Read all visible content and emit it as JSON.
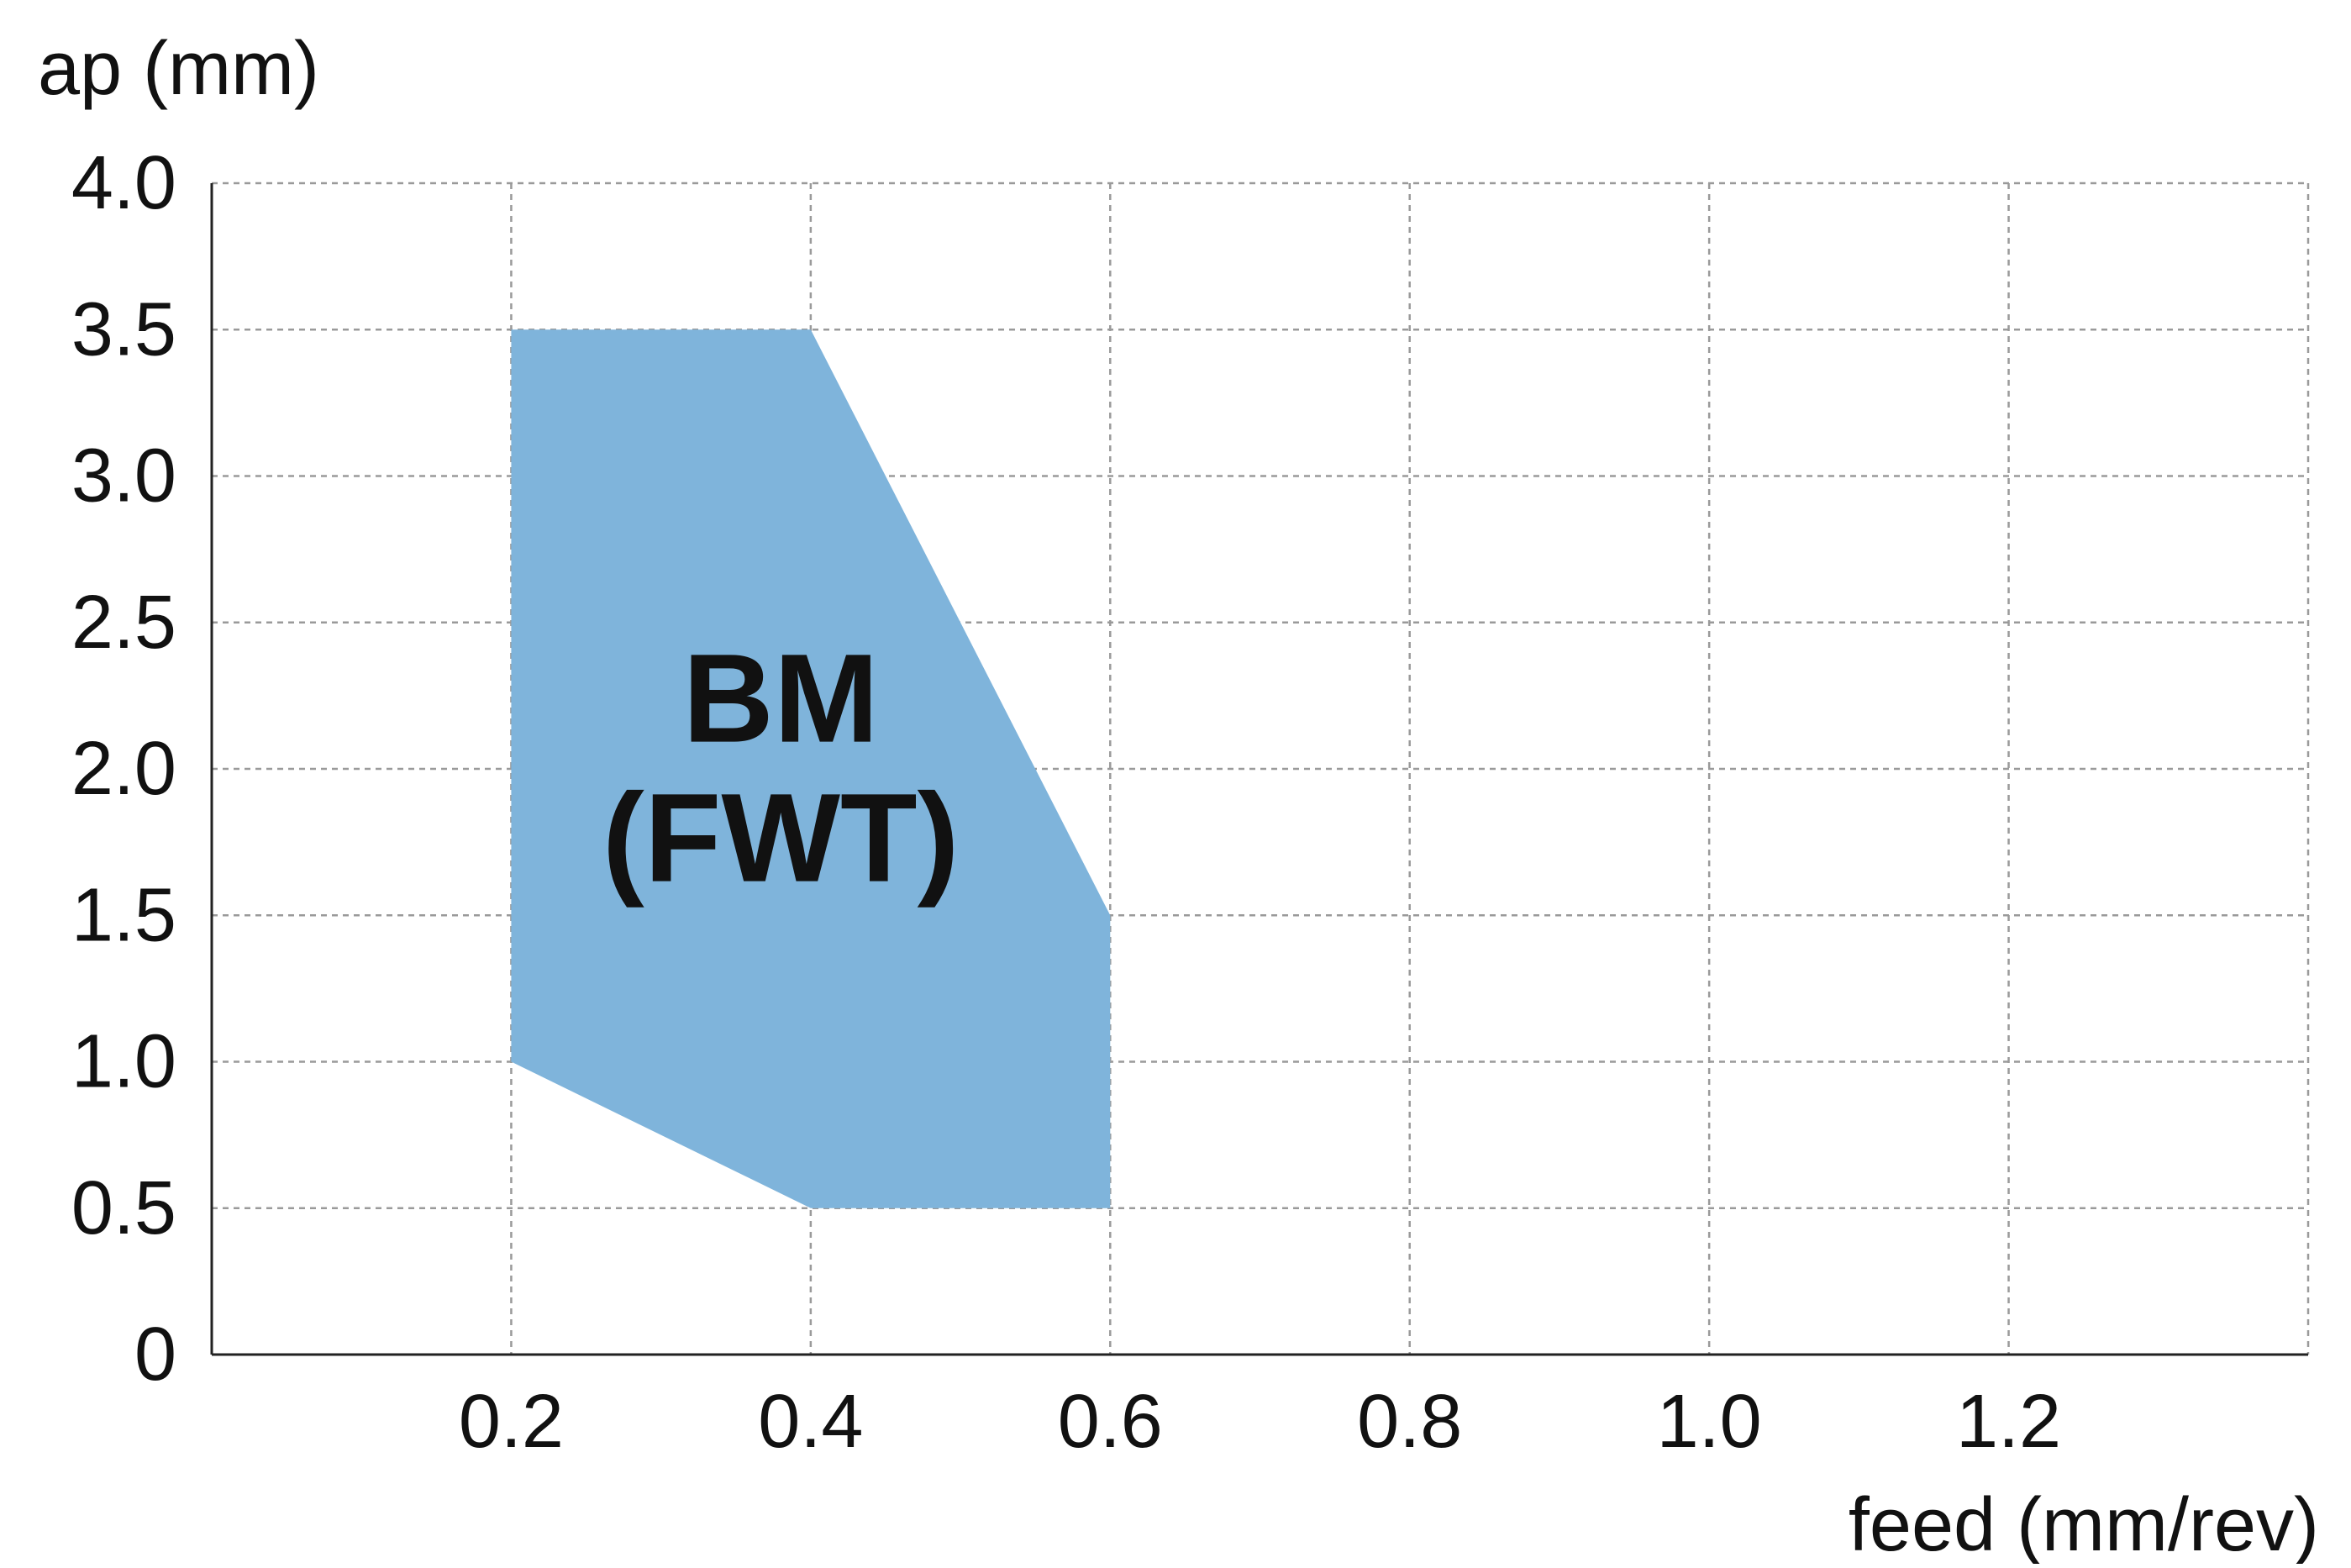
{
  "chart_data": {
    "type": "area",
    "title": "",
    "xlabel": "feed (mm/rev)",
    "ylabel": "ap (mm)",
    "xlim": [
      0,
      1.4
    ],
    "ylim": [
      0,
      4.0
    ],
    "x_ticks": [
      0.2,
      0.4,
      0.6,
      0.8,
      1.0,
      1.2
    ],
    "x_tick_labels": [
      "0.2",
      "0.4",
      "0.6",
      "0.8",
      "1.0",
      "1.2"
    ],
    "y_ticks": [
      0,
      0.5,
      1.0,
      1.5,
      2.0,
      2.5,
      3.0,
      3.5,
      4.0
    ],
    "y_tick_labels": [
      "0",
      "0.5",
      "1.0",
      "1.5",
      "2.0",
      "2.5",
      "3.0",
      "3.5",
      "4.0"
    ],
    "grid": true,
    "series": [
      {
        "label_line1": "BM",
        "label_line2": "(FWT)",
        "color": "#7fb4db",
        "polygon": [
          {
            "x": 0.2,
            "y": 1.0
          },
          {
            "x": 0.2,
            "y": 3.5
          },
          {
            "x": 0.4,
            "y": 3.5
          },
          {
            "x": 0.6,
            "y": 1.5
          },
          {
            "x": 0.6,
            "y": 0.5
          },
          {
            "x": 0.4,
            "y": 0.5
          }
        ],
        "label_x": 0.38,
        "label_y": 2.07
      }
    ]
  }
}
